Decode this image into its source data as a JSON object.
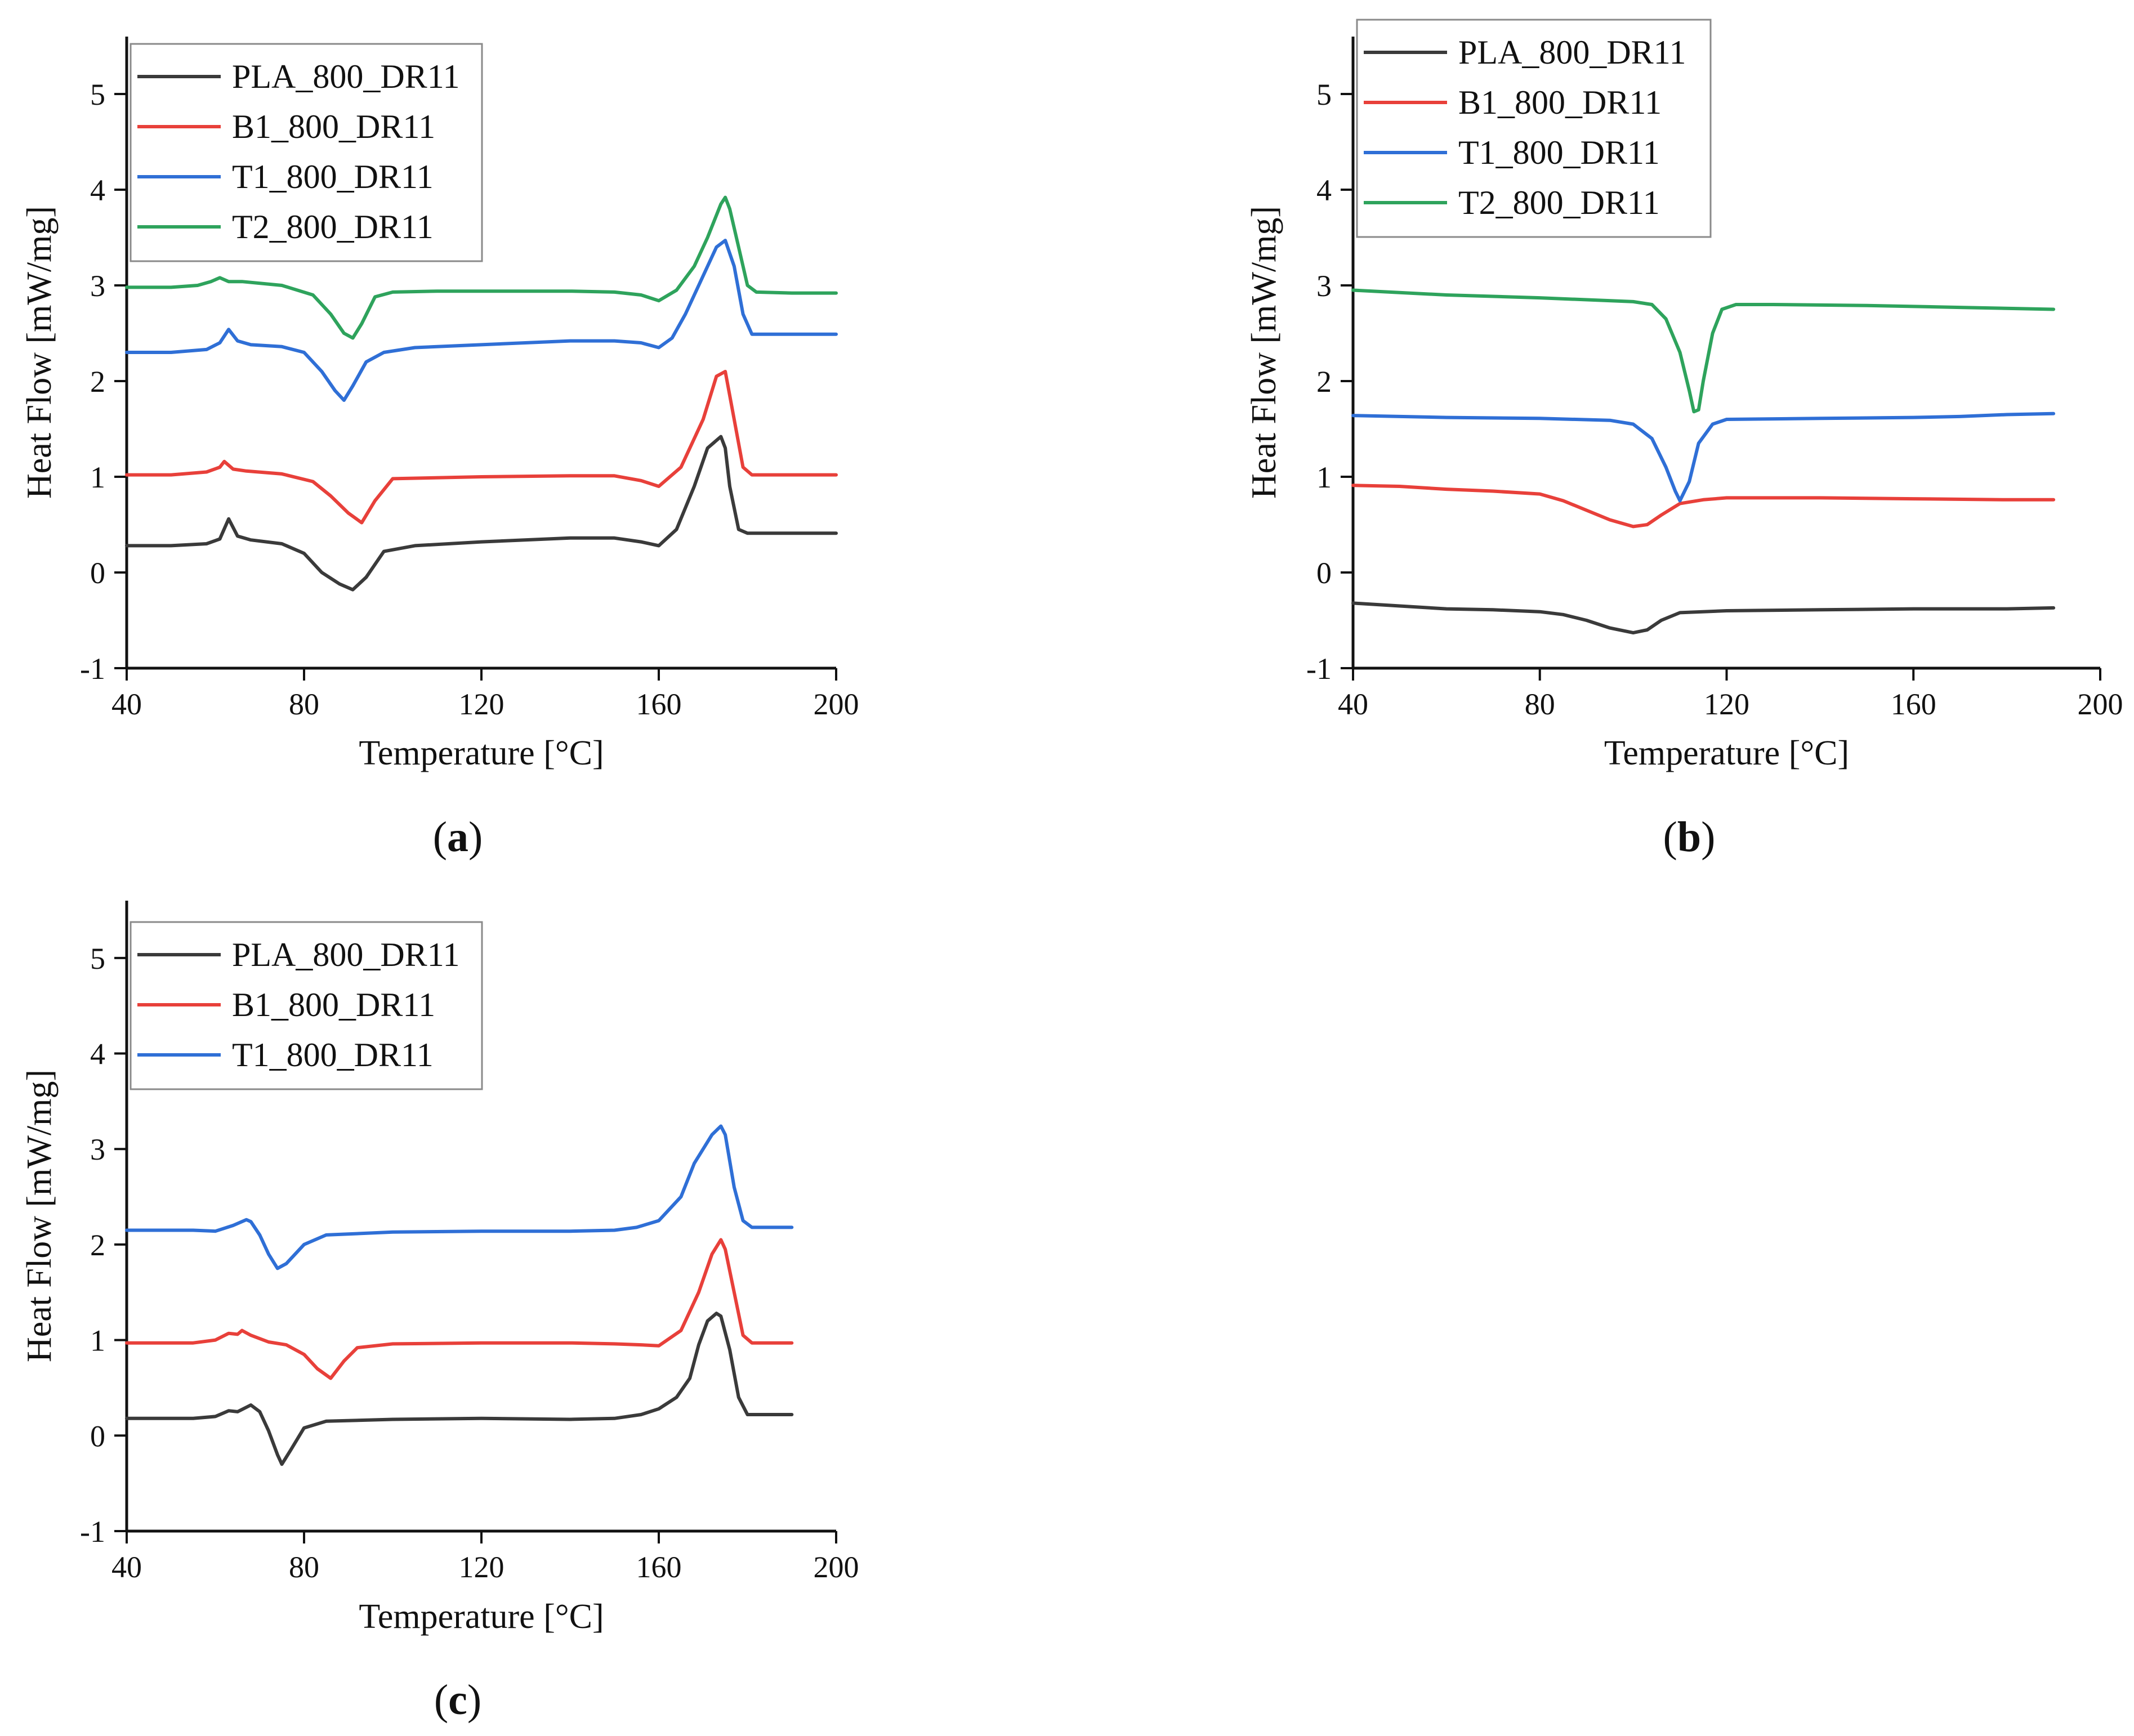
{
  "figure": {
    "panels": [
      {
        "caption": "a",
        "chart_data": {
          "type": "line",
          "title": "",
          "xlabel": "Temperature [°C]",
          "ylabel": "Heat Flow [mW/mg]",
          "xlim": [
            40,
            200
          ],
          "ylim": [
            -1,
            5.6
          ],
          "xticks": [
            40,
            80,
            120,
            160,
            200
          ],
          "yticks": [
            -1,
            0,
            1,
            2,
            3,
            4,
            5
          ],
          "legend": "top-left",
          "series": [
            {
              "name": "PLA_800_DR11",
              "color": "#3a3a3a",
              "x": [
                40,
                50,
                58,
                61,
                63,
                65,
                68,
                75,
                80,
                84,
                88,
                91,
                94,
                98,
                105,
                120,
                140,
                150,
                156,
                160,
                164,
                168,
                171,
                173,
                174,
                175,
                176,
                178,
                180,
                190,
                200
              ],
              "y": [
                0.28,
                0.28,
                0.3,
                0.35,
                0.56,
                0.38,
                0.34,
                0.3,
                0.2,
                0.0,
                -0.12,
                -0.18,
                -0.05,
                0.22,
                0.28,
                0.32,
                0.36,
                0.36,
                0.32,
                0.28,
                0.45,
                0.9,
                1.3,
                1.38,
                1.42,
                1.3,
                0.9,
                0.45,
                0.41,
                0.41,
                0.41
              ]
            },
            {
              "name": "B1_800_DR11",
              "color": "#e8403a",
              "x": [
                40,
                50,
                58,
                61,
                62,
                64,
                67,
                75,
                82,
                86,
                90,
                93,
                96,
                100,
                120,
                140,
                150,
                156,
                160,
                165,
                170,
                173,
                175,
                177,
                179,
                181,
                190,
                200
              ],
              "y": [
                1.02,
                1.02,
                1.05,
                1.1,
                1.16,
                1.08,
                1.06,
                1.03,
                0.95,
                0.8,
                0.62,
                0.52,
                0.75,
                0.98,
                1.0,
                1.01,
                1.01,
                0.96,
                0.9,
                1.1,
                1.6,
                2.05,
                2.1,
                1.6,
                1.1,
                1.02,
                1.02,
                1.02
              ]
            },
            {
              "name": "T1_800_DR11",
              "color": "#2f6fd6",
              "x": [
                40,
                50,
                58,
                61,
                63,
                65,
                68,
                75,
                80,
                84,
                87,
                89,
                91,
                94,
                98,
                105,
                120,
                140,
                150,
                156,
                160,
                163,
                166,
                170,
                173,
                175,
                177,
                179,
                181,
                190,
                200
              ],
              "y": [
                2.3,
                2.3,
                2.33,
                2.4,
                2.54,
                2.42,
                2.38,
                2.36,
                2.3,
                2.1,
                1.9,
                1.8,
                1.95,
                2.2,
                2.3,
                2.35,
                2.38,
                2.42,
                2.42,
                2.4,
                2.35,
                2.45,
                2.7,
                3.1,
                3.4,
                3.47,
                3.2,
                2.7,
                2.49,
                2.49,
                2.49
              ]
            },
            {
              "name": "T2_800_DR11",
              "color": "#2ea35c",
              "x": [
                40,
                50,
                56,
                59,
                61,
                63,
                66,
                75,
                82,
                86,
                89,
                91,
                93,
                96,
                100,
                110,
                120,
                140,
                150,
                156,
                160,
                164,
                168,
                171,
                174,
                175,
                176,
                178,
                180,
                182,
                190,
                200
              ],
              "y": [
                2.98,
                2.98,
                3.0,
                3.04,
                3.08,
                3.04,
                3.04,
                3.0,
                2.9,
                2.7,
                2.5,
                2.45,
                2.6,
                2.88,
                2.93,
                2.94,
                2.94,
                2.94,
                2.93,
                2.9,
                2.84,
                2.95,
                3.2,
                3.5,
                3.85,
                3.92,
                3.8,
                3.4,
                3.0,
                2.93,
                2.92,
                2.92
              ]
            }
          ]
        }
      },
      {
        "caption": "b",
        "chart_data": {
          "type": "line",
          "title": "",
          "xlabel": "Temperature [°C]",
          "ylabel": "Heat Flow [mW/mg]",
          "xlim": [
            40,
            200
          ],
          "ylim": [
            -1,
            5.6
          ],
          "xticks": [
            40,
            80,
            120,
            160,
            200
          ],
          "yticks": [
            -1,
            0,
            1,
            2,
            3,
            4,
            5
          ],
          "legend": "top-left",
          "series": [
            {
              "name": "PLA_800_DR11",
              "color": "#3a3a3a",
              "x": [
                40,
                50,
                60,
                70,
                80,
                85,
                90,
                95,
                100,
                103,
                106,
                110,
                120,
                140,
                160,
                180,
                190
              ],
              "y": [
                -0.32,
                -0.35,
                -0.38,
                -0.39,
                -0.41,
                -0.44,
                -0.5,
                -0.58,
                -0.63,
                -0.6,
                -0.5,
                -0.42,
                -0.4,
                -0.39,
                -0.38,
                -0.38,
                -0.37
              ]
            },
            {
              "name": "B1_800_DR11",
              "color": "#e8403a",
              "x": [
                40,
                50,
                60,
                70,
                80,
                85,
                90,
                95,
                100,
                103,
                106,
                110,
                115,
                120,
                140,
                160,
                180,
                190
              ],
              "y": [
                0.91,
                0.9,
                0.87,
                0.85,
                0.82,
                0.75,
                0.65,
                0.55,
                0.48,
                0.5,
                0.6,
                0.72,
                0.76,
                0.78,
                0.78,
                0.77,
                0.76,
                0.76
              ]
            },
            {
              "name": "T1_800_DR11",
              "color": "#2f6fd6",
              "x": [
                40,
                60,
                80,
                95,
                100,
                104,
                107,
                109,
                110,
                112,
                114,
                117,
                120,
                140,
                160,
                170,
                180,
                190
              ],
              "y": [
                1.64,
                1.62,
                1.61,
                1.59,
                1.55,
                1.4,
                1.1,
                0.85,
                0.75,
                0.95,
                1.35,
                1.55,
                1.6,
                1.61,
                1.62,
                1.63,
                1.65,
                1.66
              ]
            },
            {
              "name": "T2_800_DR11",
              "color": "#2ea35c",
              "x": [
                40,
                60,
                80,
                100,
                104,
                107,
                110,
                112,
                113,
                114,
                115,
                117,
                119,
                122,
                130,
                150,
                170,
                190
              ],
              "y": [
                2.95,
                2.9,
                2.87,
                2.83,
                2.8,
                2.65,
                2.3,
                1.9,
                1.68,
                1.7,
                2.0,
                2.5,
                2.75,
                2.8,
                2.8,
                2.79,
                2.77,
                2.75
              ]
            }
          ]
        }
      },
      {
        "caption": "c",
        "chart_data": {
          "type": "line",
          "title": "",
          "xlabel": "Temperature [°C]",
          "ylabel": "Heat Flow [mW/mg]",
          "xlim": [
            40,
            200
          ],
          "ylim": [
            -1,
            5.6
          ],
          "xticks": [
            40,
            80,
            120,
            160,
            200
          ],
          "yticks": [
            -1,
            0,
            1,
            2,
            3,
            4,
            5
          ],
          "legend": "top-left",
          "series": [
            {
              "name": "PLA_800_DR11",
              "color": "#3a3a3a",
              "x": [
                40,
                55,
                60,
                63,
                65,
                68,
                70,
                72,
                74,
                75,
                77,
                80,
                85,
                100,
                120,
                140,
                150,
                156,
                160,
                164,
                167,
                169,
                171,
                173,
                174,
                176,
                178,
                180,
                190
              ],
              "y": [
                0.18,
                0.18,
                0.2,
                0.26,
                0.25,
                0.32,
                0.25,
                0.05,
                -0.2,
                -0.3,
                -0.15,
                0.08,
                0.15,
                0.17,
                0.18,
                0.17,
                0.18,
                0.22,
                0.28,
                0.4,
                0.6,
                0.95,
                1.2,
                1.28,
                1.25,
                0.9,
                0.4,
                0.22,
                0.22
              ]
            },
            {
              "name": "B1_800_DR11",
              "color": "#e8403a",
              "x": [
                40,
                55,
                60,
                63,
                65,
                66,
                68,
                72,
                76,
                80,
                83,
                86,
                89,
                92,
                100,
                120,
                140,
                150,
                156,
                160,
                165,
                169,
                172,
                174,
                175,
                177,
                179,
                181,
                190
              ],
              "y": [
                0.97,
                0.97,
                1.0,
                1.07,
                1.06,
                1.1,
                1.05,
                0.98,
                0.95,
                0.85,
                0.7,
                0.6,
                0.78,
                0.92,
                0.96,
                0.97,
                0.97,
                0.96,
                0.95,
                0.94,
                1.1,
                1.5,
                1.9,
                2.05,
                1.95,
                1.5,
                1.05,
                0.97,
                0.97
              ]
            },
            {
              "name": "T1_800_DR11",
              "color": "#2f6fd6",
              "x": [
                40,
                55,
                60,
                64,
                67,
                68,
                70,
                72,
                74,
                76,
                80,
                85,
                100,
                120,
                140,
                150,
                155,
                160,
                165,
                168,
                170,
                172,
                174,
                175,
                177,
                179,
                181,
                190
              ],
              "y": [
                2.15,
                2.15,
                2.14,
                2.2,
                2.26,
                2.24,
                2.1,
                1.9,
                1.75,
                1.8,
                2.0,
                2.1,
                2.13,
                2.14,
                2.14,
                2.15,
                2.18,
                2.25,
                2.5,
                2.85,
                3.0,
                3.15,
                3.24,
                3.15,
                2.6,
                2.25,
                2.18,
                2.18
              ]
            }
          ]
        }
      }
    ]
  }
}
